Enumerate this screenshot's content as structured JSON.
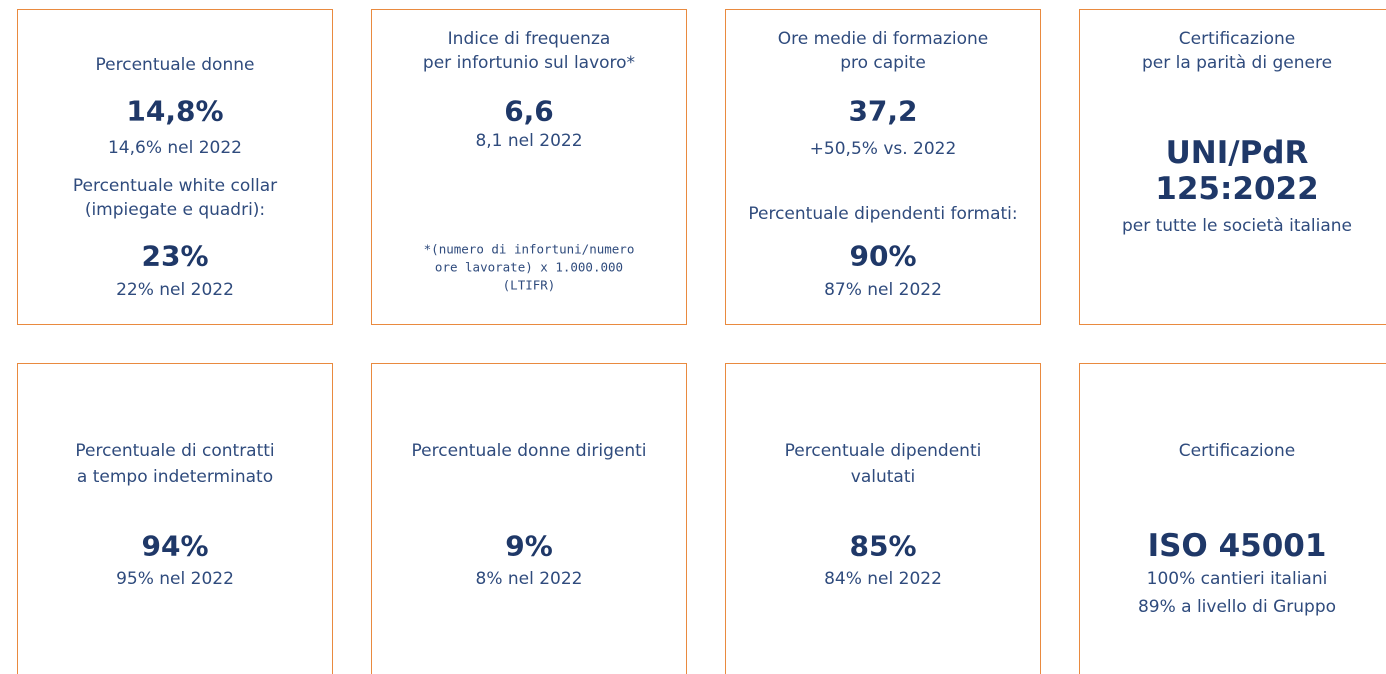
{
  "cards": [
    {
      "items": [
        {
          "label": [
            "Percentuale donne"
          ],
          "value": [
            "14,8%"
          ],
          "note": [
            "14,6% nel 2022"
          ]
        },
        {
          "label": [
            "Percentuale white collar",
            "(impiegate e quadri):"
          ],
          "value": [
            "23%"
          ],
          "note": [
            "22% nel 2022"
          ]
        }
      ]
    },
    {
      "items": [
        {
          "label": [
            "Indice di frequenza",
            "per infortunio sul lavoro*"
          ],
          "value": [
            "6,6"
          ],
          "note": [
            "8,1 nel 2022"
          ]
        }
      ],
      "footnote": [
        "*(numero di infortuni/numero",
        "ore lavorate) x 1.000.000",
        "(LTIFR)"
      ]
    },
    {
      "items": [
        {
          "label": [
            "Ore medie di formazione",
            "pro capite"
          ],
          "value": [
            "37,2"
          ],
          "note": [
            "+50,5% vs. 2022"
          ]
        },
        {
          "label": [
            "Percentuale dipendenti formati:"
          ],
          "value": [
            "90%"
          ],
          "note": [
            "87% nel 2022"
          ]
        }
      ]
    },
    {
      "items": [
        {
          "label": [
            "Certificazione",
            "per la parità di genere"
          ],
          "value": [
            "UNI/PdR",
            "125:2022"
          ],
          "note": [
            "per tutte le società italiane"
          ]
        }
      ]
    },
    {
      "items": [
        {
          "label": [
            "Percentuale di contratti",
            "a tempo indeterminato"
          ],
          "value": [
            "94%"
          ],
          "note": [
            "95% nel 2022"
          ]
        }
      ]
    },
    {
      "items": [
        {
          "label": [
            "Percentuale donne dirigenti"
          ],
          "value": [
            "9%"
          ],
          "note": [
            "8% nel 2022"
          ]
        }
      ]
    },
    {
      "items": [
        {
          "label": [
            "Percentuale dipendenti",
            "valutati"
          ],
          "value": [
            "85%"
          ],
          "note": [
            "84% nel 2022"
          ]
        }
      ]
    },
    {
      "items": [
        {
          "label": [
            "Certificazione"
          ],
          "value": [
            "ISO 45001"
          ],
          "note": [
            "100% cantieri italiani",
            "89% a livello di Gruppo"
          ]
        }
      ]
    }
  ]
}
